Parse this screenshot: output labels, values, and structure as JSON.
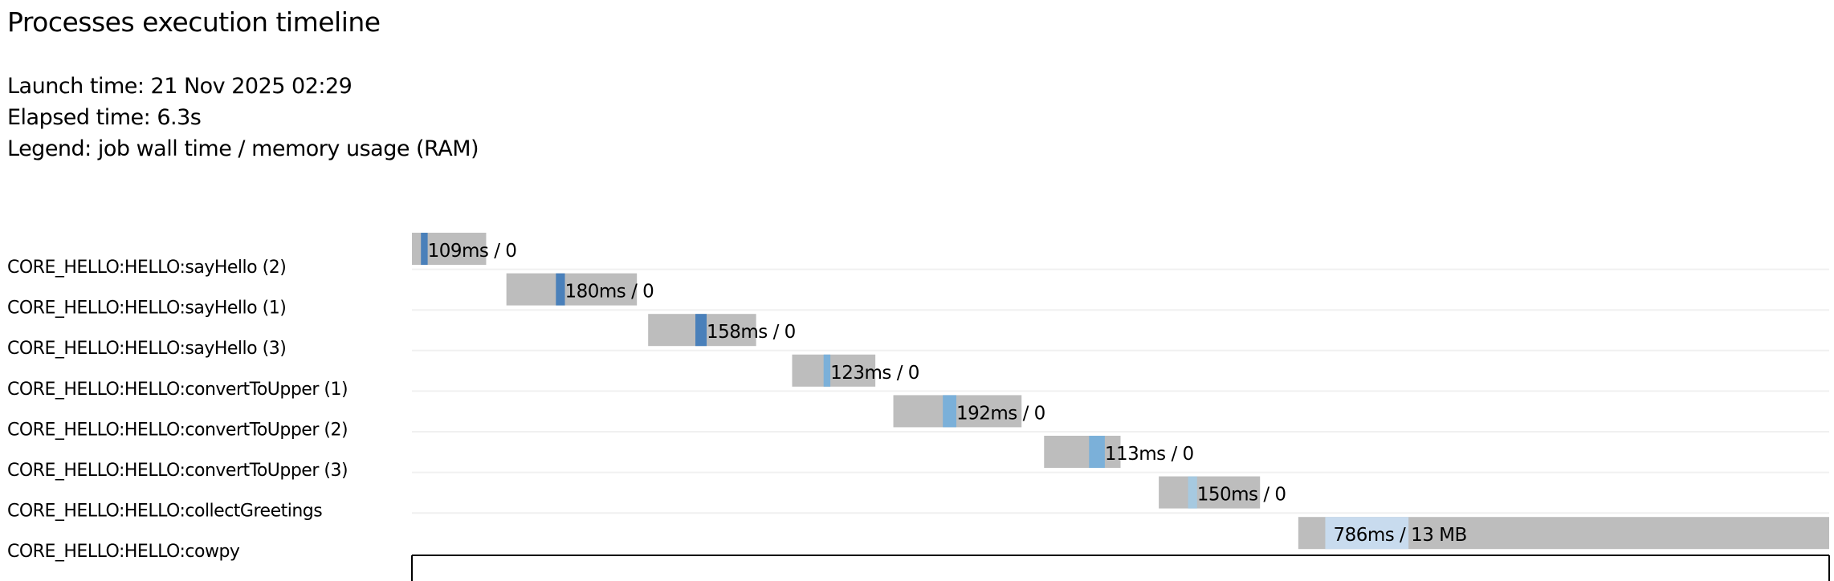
{
  "header": {
    "title": "Processes execution timeline",
    "launch_time": "Launch time: 21 Nov 2025 02:29",
    "elapsed_time": "Elapsed time: 6.3s",
    "legend": "Legend: job wall time / memory usage (RAM)"
  },
  "chart_data": {
    "type": "timeline",
    "title": "Processes execution timeline",
    "x_unit": "ms",
    "xlim": [
      0,
      6300
    ],
    "grid": false,
    "colors": {
      "pending": "#bdbdbd",
      "sayHello": "#4a80ba",
      "convertToUpper": "#7bb0d9",
      "collectGreetings": "#a6c9e0",
      "cowpy": "#c8dbee",
      "row_line": "#f0f0f0"
    },
    "tasks": [
      {
        "label": "CORE_HELLO:HELLO:sayHello (2)",
        "process": "sayHello",
        "submit": 0,
        "start": 40,
        "end_run": 70,
        "complete": 330,
        "time_label": "109ms",
        "mem_label": " / 0"
      },
      {
        "label": "CORE_HELLO:HELLO:sayHello (1)",
        "process": "sayHello",
        "submit": 420,
        "start": 640,
        "end_run": 680,
        "complete": 1000,
        "time_label": "180ms",
        "mem_label": " / 0"
      },
      {
        "label": "CORE_HELLO:HELLO:sayHello (3)",
        "process": "sayHello",
        "submit": 1050,
        "start": 1260,
        "end_run": 1310,
        "complete": 1530,
        "time_label": "158ms",
        "mem_label": " / 0"
      },
      {
        "label": "CORE_HELLO:HELLO:convertToUpper (1)",
        "process": "convertToUpper",
        "submit": 1690,
        "start": 1830,
        "end_run": 1860,
        "complete": 2060,
        "time_label": "123ms",
        "mem_label": " / 0"
      },
      {
        "label": "CORE_HELLO:HELLO:convertToUpper (2)",
        "process": "convertToUpper",
        "submit": 2140,
        "start": 2360,
        "end_run": 2420,
        "complete": 2710,
        "time_label": "192ms",
        "mem_label": " / 0"
      },
      {
        "label": "CORE_HELLO:HELLO:convertToUpper (3)",
        "process": "convertToUpper",
        "submit": 2810,
        "start": 3010,
        "end_run": 3080,
        "complete": 3150,
        "time_label": "113ms",
        "mem_label": " / 0"
      },
      {
        "label": "CORE_HELLO:HELLO:collectGreetings",
        "process": "collectGreetings",
        "submit": 3320,
        "start": 3450,
        "end_run": 3490,
        "complete": 3770,
        "time_label": "150ms",
        "mem_label": " / 0"
      },
      {
        "label": "CORE_HELLO:HELLO:cowpy",
        "process": "cowpy",
        "submit": 3940,
        "start": 4060,
        "end_run": 4430,
        "complete": 6300,
        "time_label": "786ms",
        "mem_label": " / 13 MB"
      }
    ]
  }
}
